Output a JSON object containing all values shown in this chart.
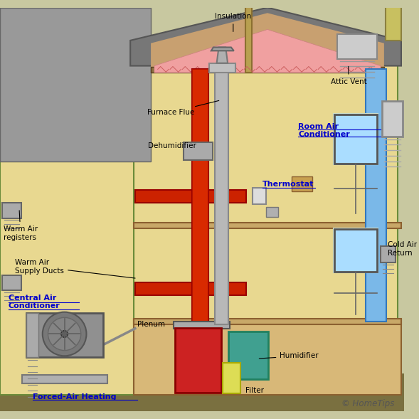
{
  "bg_color": "#c8c8a0",
  "house_wall_color": "#e8d890",
  "roof_color": "#888888",
  "red_duct_color": "#cc2200",
  "blue_duct_color": "#5599dd",
  "ground_color": "#7a8040",
  "grass_color": "#5aaa40",
  "labels": {
    "insulation": "Insulation",
    "furnace_flue": "Furnace Flue",
    "attic_vent": "Attic Vent",
    "room_ac": "Room Air\nConditioner",
    "thermostat": "Thermostat",
    "dehumidifier": "Dehumidifier",
    "warm_air_reg": "Warm Air\nregisters",
    "warm_air_ducts": "Warm Air\nSupply Ducts",
    "central_ac": "Central Air\nConditioner",
    "plenum": "Plenum",
    "cold_air_return": "Cold Air\nReturn",
    "humidifier": "Humidifier",
    "filter": "Filter",
    "forced_air": "Forced-Air Heating",
    "copyright": "© HomeTips"
  },
  "link_color": "#0000cc",
  "text_color": "#000000",
  "pink_insulation": "#f0a0a0",
  "teal_humidifier": "#40a090",
  "red_furnace": "#cc2222",
  "gray_ac_unit": "#888888"
}
